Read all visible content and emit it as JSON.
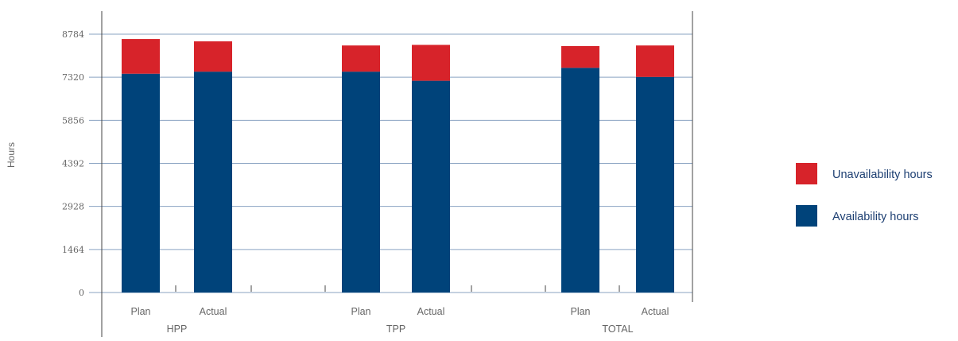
{
  "chart_data": {
    "type": "bar",
    "stacked": true,
    "ylabel": "Hours",
    "xlabel": "",
    "ylim": [
      0,
      8784
    ],
    "yticks": [
      0,
      1464,
      2928,
      4392,
      5856,
      7320,
      8784
    ],
    "grid": true,
    "legend_position": "right",
    "groups": [
      {
        "label": "HPP",
        "categories": [
          "Plan",
          "Actual"
        ]
      },
      {
        "label": "TPP",
        "categories": [
          "Plan",
          "Actual"
        ]
      },
      {
        "label": "TOTAL",
        "categories": [
          "Plan",
          "Actual"
        ]
      }
    ],
    "categories": [
      "Plan",
      "Actual",
      "Plan",
      "Actual",
      "Plan",
      "Actual"
    ],
    "series": [
      {
        "name": "Availability hours",
        "color": "#00437a",
        "values": [
          7440,
          7510,
          7510,
          7200,
          7640,
          7330
        ]
      },
      {
        "name": "Unavailability hours",
        "color": "#d7232a",
        "values": [
          1180,
          1030,
          890,
          1220,
          740,
          1070
        ]
      }
    ]
  }
}
